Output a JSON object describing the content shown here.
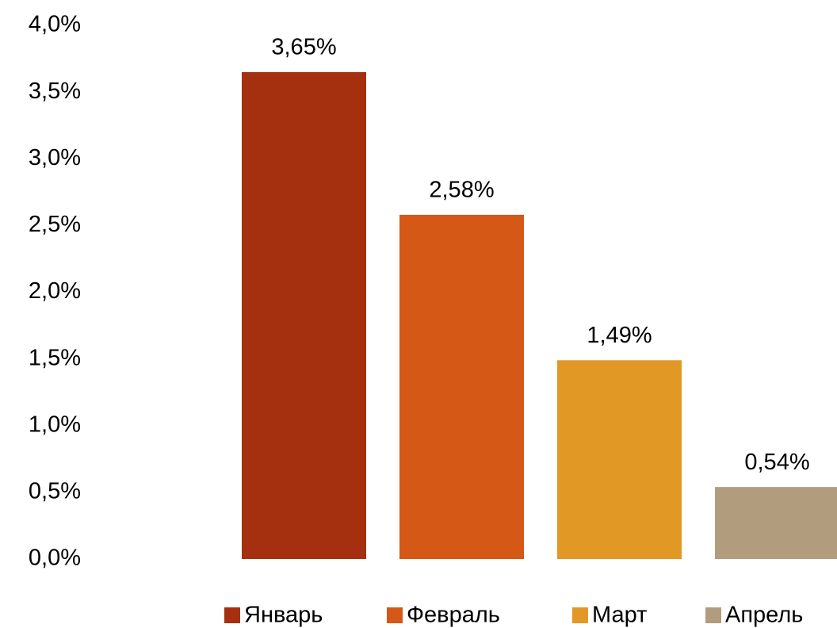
{
  "chart_data": {
    "type": "bar",
    "series": [
      {
        "name": "Январь",
        "color": "#a5300f",
        "values": [
          3.65
        ],
        "value_labels": [
          "3,65%"
        ]
      },
      {
        "name": "Февраль",
        "color": "#d55817",
        "values": [
          2.58
        ],
        "value_labels": [
          "2,58%"
        ]
      },
      {
        "name": "Март",
        "color": "#e19825",
        "values": [
          1.49
        ],
        "value_labels": [
          "1,49%"
        ]
      },
      {
        "name": "Апрель",
        "color": "#b19c7d",
        "values": [
          0.54
        ],
        "value_labels": [
          "0,54%"
        ]
      }
    ],
    "ylim": [
      0,
      4
    ],
    "yticks": [
      {
        "value": 0,
        "label": "0,0%"
      },
      {
        "value": 0.5,
        "label": "0,5%"
      },
      {
        "value": 1,
        "label": "1,0%"
      },
      {
        "value": 1.5,
        "label": "1,5%"
      },
      {
        "value": 2,
        "label": "2,0%"
      },
      {
        "value": 2.5,
        "label": "2,5%"
      },
      {
        "value": 3,
        "label": "3,0%"
      },
      {
        "value": 3.5,
        "label": "3,5%"
      },
      {
        "value": 4,
        "label": "4,0%"
      }
    ],
    "grid": false,
    "legend": "bottom"
  }
}
